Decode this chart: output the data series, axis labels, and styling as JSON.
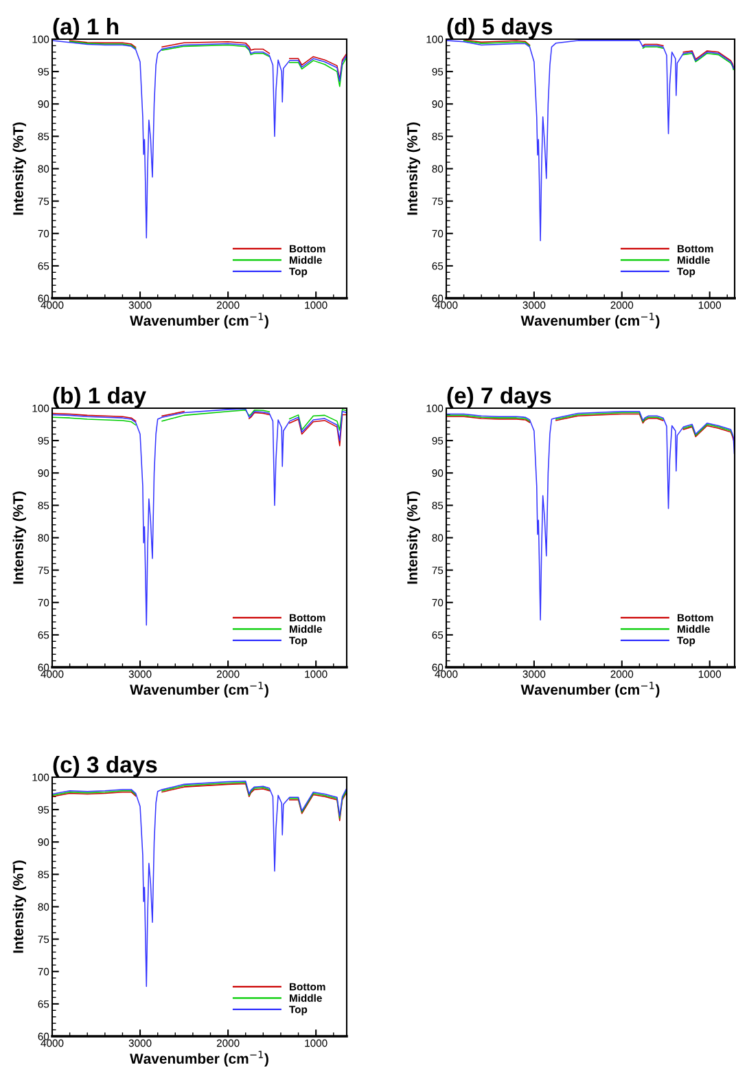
{
  "chart_data": [
    {
      "type": "line",
      "title": "(a) 1 h",
      "xlabel": "Wavenumber (cm$^{−1}$)",
      "ylabel": "Intensity (%T)",
      "xlim": [
        4000,
        650
      ],
      "ylim": [
        60,
        100
      ],
      "xticks": [
        4000,
        3000,
        2000,
        1000
      ],
      "yticks": [
        60,
        65,
        70,
        75,
        80,
        85,
        90,
        95,
        100
      ],
      "legend": "bottom right",
      "grid": false,
      "line_style": "solid",
      "marker": "none",
      "x": [
        4000,
        3800,
        3600,
        3400,
        3200,
        3100,
        3050,
        3000,
        2970,
        2960,
        2950,
        2940,
        2928,
        2915,
        2900,
        2880,
        2860,
        2840,
        2820,
        2800,
        2750,
        2500,
        2000,
        1800,
        1760,
        1740,
        1700,
        1600,
        1530,
        1490,
        1470,
        1455,
        1430,
        1390,
        1382,
        1370,
        1300,
        1200,
        1160,
        1030,
        900,
        760,
        730,
        700,
        650
      ],
      "series": [
        {
          "name": "Bottom",
          "color": "#cc0000",
          "values": [
            null,
            99.8,
            99.5,
            99.45,
            99.45,
            99.25,
            98.75,
            null,
            null,
            null,
            null,
            null,
            null,
            null,
            null,
            null,
            null,
            null,
            null,
            null,
            98.8,
            99.45,
            99.6,
            99.4,
            98.85,
            98.3,
            98.45,
            98.45,
            97.8,
            null,
            null,
            null,
            null,
            null,
            null,
            null,
            97.0,
            97.0,
            96.0,
            97.3,
            96.8,
            95.9,
            93.8,
            96.8,
            97.8
          ]
        },
        {
          "name": "Middle",
          "color": "#00cc00",
          "values": [
            null,
            99.65,
            99.35,
            99.25,
            99.25,
            99.05,
            98.55,
            null,
            null,
            null,
            null,
            null,
            null,
            null,
            null,
            null,
            null,
            null,
            null,
            null,
            98.3,
            98.9,
            99.1,
            98.85,
            98.3,
            97.6,
            97.8,
            97.8,
            97.3,
            null,
            null,
            null,
            null,
            null,
            null,
            null,
            96.4,
            96.4,
            95.4,
            96.7,
            96.1,
            95.0,
            92.7,
            96.0,
            97.2
          ]
        },
        {
          "name": "Top",
          "color": "#3333ff",
          "values": [
            99.8,
            99.5,
            99.2,
            99.1,
            99.1,
            98.9,
            98.4,
            96.5,
            88,
            82.2,
            84.5,
            78,
            69.3,
            80,
            87.5,
            84.5,
            78.7,
            90,
            96,
            97.8,
            98.5,
            99.1,
            99.3,
            99.1,
            98.5,
            97.8,
            98.0,
            98.0,
            97.5,
            96,
            85,
            92,
            96.8,
            95,
            90.3,
            95.5,
            96.7,
            96.7,
            95.7,
            97.0,
            96.5,
            95.6,
            93.5,
            96.5,
            97.5
          ]
        }
      ]
    },
    {
      "type": "line",
      "title": "(b) 1 day",
      "xlabel": "Wavenumber (cm$^{−1}$)",
      "ylabel": "Intensity (%T)",
      "xlim": [
        4000,
        650
      ],
      "ylim": [
        60,
        100
      ],
      "xticks": [
        4000,
        3000,
        2000,
        1000
      ],
      "yticks": [
        60,
        65,
        70,
        75,
        80,
        85,
        90,
        95,
        100
      ],
      "legend": "bottom right",
      "grid": false,
      "line_style": "solid",
      "marker": "none",
      "x": [
        4000,
        3800,
        3600,
        3400,
        3200,
        3100,
        3050,
        3000,
        2970,
        2960,
        2950,
        2940,
        2928,
        2915,
        2900,
        2880,
        2860,
        2840,
        2820,
        2800,
        2750,
        2500,
        2000,
        1800,
        1760,
        1740,
        1700,
        1600,
        1530,
        1490,
        1470,
        1455,
        1430,
        1390,
        1382,
        1370,
        1300,
        1200,
        1160,
        1030,
        900,
        760,
        730,
        700,
        650
      ],
      "series": [
        {
          "name": "Bottom",
          "color": "#cc0000",
          "values": [
            99.2,
            99.1,
            98.9,
            98.8,
            98.7,
            98.5,
            98.0,
            null,
            null,
            null,
            null,
            null,
            null,
            null,
            null,
            null,
            null,
            null,
            null,
            null,
            98.8,
            99.5,
            null,
            null,
            98.4,
            98.6,
            99.3,
            99.2,
            99.0,
            null,
            null,
            null,
            null,
            null,
            null,
            null,
            97.7,
            98.3,
            96.0,
            97.9,
            98.1,
            97.1,
            94.2,
            99.0,
            99.0
          ]
        },
        {
          "name": "Middle",
          "color": "#00cc00",
          "values": [
            98.6,
            98.5,
            98.3,
            98.2,
            98.1,
            97.9,
            97.4,
            null,
            null,
            null,
            null,
            null,
            null,
            null,
            null,
            null,
            null,
            null,
            null,
            null,
            98.0,
            98.9,
            99.5,
            99.7,
            98.85,
            99.05,
            99.7,
            99.65,
            99.45,
            null,
            null,
            null,
            null,
            null,
            null,
            null,
            98.35,
            98.95,
            96.65,
            98.8,
            98.9,
            98.0,
            96.6,
            99.8,
            99.6
          ]
        },
        {
          "name": "Top",
          "color": "#3333ff",
          "values": [
            99.0,
            98.9,
            98.7,
            98.6,
            98.5,
            98.3,
            97.8,
            96,
            88,
            79.2,
            81.7,
            75,
            66.5,
            78,
            86,
            82.5,
            76.8,
            90,
            96,
            98.3,
            98.6,
            99.3,
            99.8,
            99.9,
            98.6,
            98.8,
            99.5,
            99.4,
            99.2,
            98,
            85,
            92,
            98.2,
            97,
            91,
            96.5,
            98,
            98.6,
            96.3,
            98.2,
            98.4,
            97.4,
            95,
            99.5,
            99.3
          ]
        }
      ]
    },
    {
      "type": "line",
      "title": "(c) 3 days",
      "xlabel": "Wavenumber (cm$^{−1}$)",
      "ylabel": "Intensity (%T)",
      "xlim": [
        4000,
        650
      ],
      "ylim": [
        60,
        100
      ],
      "xticks": [
        4000,
        3000,
        2000,
        1000
      ],
      "yticks": [
        60,
        65,
        70,
        75,
        80,
        85,
        90,
        95,
        100
      ],
      "legend": "bottom right",
      "grid": false,
      "line_style": "solid",
      "marker": "none",
      "x": [
        4000,
        3800,
        3600,
        3400,
        3200,
        3100,
        3050,
        3000,
        2970,
        2960,
        2950,
        2940,
        2928,
        2915,
        2900,
        2880,
        2860,
        2840,
        2820,
        2800,
        2750,
        2500,
        2000,
        1800,
        1760,
        1740,
        1700,
        1600,
        1530,
        1490,
        1470,
        1455,
        1430,
        1390,
        1382,
        1370,
        1300,
        1200,
        1160,
        1030,
        900,
        760,
        730,
        700,
        650
      ],
      "series": [
        {
          "name": "Bottom",
          "color": "#cc0000",
          "values": [
            97.0,
            97.5,
            97.4,
            97.5,
            97.7,
            97.7,
            97.1,
            null,
            null,
            null,
            null,
            null,
            null,
            null,
            null,
            null,
            null,
            null,
            null,
            null,
            97.7,
            98.5,
            98.9,
            99.0,
            97.0,
            97.6,
            98.1,
            98.2,
            97.9,
            null,
            null,
            null,
            null,
            null,
            null,
            null,
            96.5,
            96.5,
            94.4,
            97.3,
            97.0,
            96.5,
            93.3,
            96.5,
            97.7
          ]
        },
        {
          "name": "Middle",
          "color": "#00cc00",
          "values": [
            97.2,
            97.7,
            97.6,
            97.7,
            97.9,
            97.9,
            97.3,
            null,
            null,
            null,
            null,
            null,
            null,
            null,
            null,
            null,
            null,
            null,
            null,
            null,
            97.9,
            98.7,
            99.1,
            99.2,
            97.2,
            97.8,
            98.3,
            98.4,
            98.1,
            null,
            null,
            null,
            null,
            null,
            null,
            null,
            96.7,
            96.7,
            94.6,
            97.5,
            97.2,
            96.7,
            93.7,
            96.7,
            98.0
          ]
        },
        {
          "name": "Top",
          "color": "#3333ff",
          "values": [
            97.4,
            97.9,
            97.8,
            97.9,
            98.1,
            98.1,
            97.5,
            95.5,
            88,
            80.8,
            83,
            76,
            67.7,
            78.5,
            86.7,
            83.5,
            77.6,
            90,
            96,
            97.8,
            98.1,
            98.9,
            99.3,
            99.4,
            97.4,
            98.0,
            98.5,
            98.6,
            98.3,
            97,
            85.5,
            92,
            97.2,
            96,
            91.1,
            95.8,
            96.9,
            96.9,
            94.8,
            97.7,
            97.4,
            96.9,
            94,
            97,
            98.3
          ]
        }
      ]
    },
    {
      "type": "line",
      "title": "(d) 5 days",
      "xlabel": "Wavenumber (cm$^{−1}$)",
      "ylabel": "Intensity (%T)",
      "xlim": [
        4000,
        716
      ],
      "ylim": [
        60,
        100
      ],
      "xticks": [
        4000,
        3000,
        2000,
        1000
      ],
      "yticks": [
        60,
        65,
        70,
        75,
        80,
        85,
        90,
        95,
        100
      ],
      "legend": "bottom right",
      "grid": false,
      "line_style": "solid",
      "marker": "none",
      "x": [
        4000,
        3800,
        3600,
        3400,
        3200,
        3100,
        3050,
        3000,
        2970,
        2960,
        2950,
        2940,
        2928,
        2915,
        2900,
        2880,
        2860,
        2840,
        2820,
        2800,
        2750,
        2500,
        2000,
        1800,
        1760,
        1740,
        1700,
        1600,
        1530,
        1490,
        1470,
        1455,
        1430,
        1390,
        1382,
        1370,
        1300,
        1200,
        1160,
        1030,
        900,
        760,
        740,
        730
      ],
      "series": [
        {
          "name": "Bottom",
          "color": "#cc0000",
          "values": [
            null,
            99.9,
            99.55,
            99.65,
            99.75,
            99.65,
            99.1,
            null,
            null,
            null,
            null,
            null,
            null,
            null,
            null,
            null,
            null,
            null,
            null,
            null,
            null,
            null,
            null,
            null,
            99.0,
            99.2,
            99.2,
            99.2,
            99.0,
            null,
            null,
            null,
            null,
            null,
            null,
            null,
            98.0,
            98.2,
            96.9,
            98.2,
            98.0,
            96.7,
            96.2,
            95.7
          ]
        },
        {
          "name": "Middle",
          "color": "#00cc00",
          "values": [
            null,
            99.75,
            99.35,
            99.45,
            99.55,
            99.5,
            98.95,
            null,
            null,
            null,
            null,
            null,
            null,
            null,
            null,
            null,
            null,
            null,
            null,
            null,
            null,
            null,
            null,
            null,
            98.6,
            98.8,
            98.8,
            98.8,
            98.6,
            null,
            null,
            null,
            null,
            null,
            null,
            null,
            97.6,
            97.8,
            96.5,
            97.8,
            97.6,
            96.3,
            95.8,
            95.3
          ]
        },
        {
          "name": "Top",
          "color": "#3333ff",
          "values": [
            99.8,
            99.6,
            99.1,
            99.2,
            99.3,
            99.3,
            98.8,
            96.5,
            88,
            82.1,
            84.5,
            78,
            68.9,
            80,
            88,
            84,
            78.5,
            90,
            96,
            98.8,
            99.4,
            99.8,
            99.8,
            99.8,
            98.8,
            99.0,
            99.0,
            99.0,
            98.8,
            97.5,
            85.4,
            93,
            98,
            97,
            91.3,
            96.3,
            97.8,
            98.0,
            96.7,
            98.0,
            97.8,
            96.5,
            96,
            95.5
          ]
        }
      ]
    },
    {
      "type": "line",
      "title": "(e) 7 days",
      "xlabel": "Wavenumber (cm$^{−1}$)",
      "ylabel": "Intensity (%T)",
      "xlim": [
        4000,
        716
      ],
      "ylim": [
        60,
        100
      ],
      "xticks": [
        4000,
        3000,
        2000,
        1000
      ],
      "yticks": [
        60,
        65,
        70,
        75,
        80,
        85,
        90,
        95,
        100
      ],
      "legend": "bottom right",
      "grid": false,
      "line_style": "solid",
      "marker": "none",
      "x": [
        4000,
        3800,
        3600,
        3400,
        3200,
        3100,
        3050,
        3000,
        2970,
        2960,
        2950,
        2940,
        2928,
        2915,
        2900,
        2880,
        2860,
        2840,
        2820,
        2800,
        2750,
        2500,
        2000,
        1800,
        1760,
        1740,
        1700,
        1600,
        1530,
        1490,
        1470,
        1455,
        1430,
        1390,
        1382,
        1370,
        1300,
        1200,
        1160,
        1030,
        900,
        760,
        740,
        730,
        720
      ],
      "series": [
        {
          "name": "Bottom",
          "color": "#cc0000",
          "values": [
            98.7,
            98.7,
            98.4,
            98.3,
            98.3,
            98.2,
            97.8,
            null,
            null,
            null,
            null,
            null,
            null,
            null,
            null,
            null,
            null,
            null,
            null,
            null,
            98.1,
            98.8,
            99.1,
            99.1,
            97.7,
            98.1,
            98.4,
            98.4,
            98.1,
            null,
            null,
            null,
            null,
            null,
            null,
            null,
            96.7,
            97.1,
            95.6,
            97.3,
            96.9,
            96.3,
            95.6,
            95.1,
            null
          ]
        },
        {
          "name": "Middle",
          "color": "#00cc00",
          "values": [
            98.9,
            98.9,
            98.6,
            98.5,
            98.5,
            98.4,
            98.0,
            null,
            null,
            null,
            null,
            null,
            null,
            null,
            null,
            null,
            null,
            null,
            null,
            null,
            98.3,
            99.0,
            99.3,
            99.3,
            97.9,
            98.3,
            98.6,
            98.6,
            98.3,
            null,
            null,
            null,
            null,
            null,
            null,
            null,
            96.9,
            97.3,
            95.8,
            97.5,
            97.1,
            96.5,
            95.8,
            null,
            null
          ]
        },
        {
          "name": "Top",
          "color": "#3333ff",
          "values": [
            99.1,
            99.1,
            98.8,
            98.7,
            98.7,
            98.6,
            98.2,
            96.5,
            88,
            80.5,
            82.7,
            76,
            67.3,
            78,
            86.5,
            83,
            77.2,
            90,
            96,
            98.3,
            98.5,
            99.2,
            99.5,
            99.5,
            98.1,
            98.5,
            98.8,
            98.8,
            98.5,
            97.2,
            84.5,
            92,
            97.3,
            96.5,
            90.3,
            95.8,
            97.1,
            97.5,
            96.0,
            97.7,
            97.3,
            96.7,
            96,
            95.5,
            93
          ]
        }
      ]
    }
  ]
}
